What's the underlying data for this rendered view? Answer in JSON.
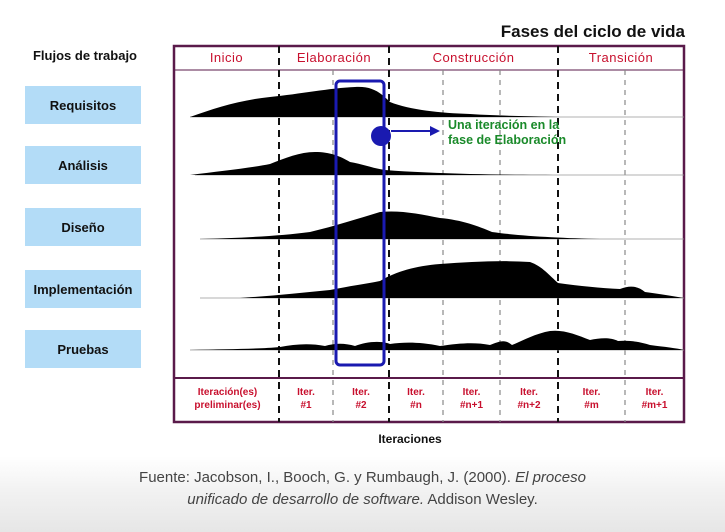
{
  "title": "Fases del ciclo de vida",
  "workflows_title": "Flujos de trabajo",
  "workflows": [
    "Requisitos",
    "Análisis",
    "Diseño",
    "Implementación",
    "Pruebas"
  ],
  "phases": [
    "Inicio",
    "Elaboración",
    "Construcción",
    "Transición"
  ],
  "iterations": [
    [
      "Iteración(es)",
      "preliminar(es)"
    ],
    [
      "Iter.",
      "#1"
    ],
    [
      "Iter.",
      "#2"
    ],
    [
      "Iter.",
      "#n"
    ],
    [
      "Iter.",
      "#n+1"
    ],
    [
      "Iter.",
      "#n+2"
    ],
    [
      "Iter.",
      "#m"
    ],
    [
      "Iter.",
      "#m+1"
    ]
  ],
  "axis_label": "Iteraciones",
  "annotation": [
    "Una iteración en la",
    "fase de Elaboración"
  ],
  "source": {
    "prefix": "Fuente: Jacobson, I., Booch, G. y Rumbaugh, J. (2000). ",
    "italic_1": "El proceso",
    "italic_2": "unificado de desarrollo de software.",
    "suffix": " Addison Wesley."
  },
  "colors": {
    "frame": "#5a1a4a",
    "phase_text": "#c8102e",
    "workflow_box": "#b3dcf7",
    "highlight": "#1a1ab0",
    "annotation": "#1a8a2a",
    "hump": "#000000"
  }
}
